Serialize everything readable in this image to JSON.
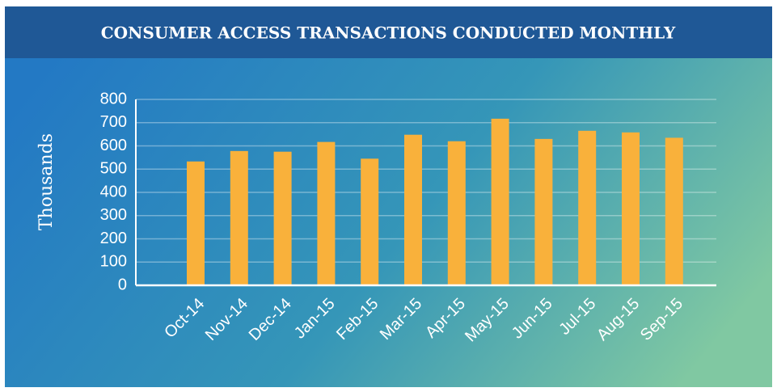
{
  "chart_data": {
    "type": "bar",
    "title": "CONSUMER ACCESS TRANSACTIONS CONDUCTED MONTHLY",
    "y_label": "Thousands",
    "categories": [
      "Oct-14",
      "Nov-14",
      "Dec-14",
      "Jan-15",
      "Feb-15",
      "Mar-15",
      "Apr-15",
      "May-15",
      "Jun-15",
      "Jul-15",
      "Aug-15",
      "Sep-15"
    ],
    "values": [
      533,
      578,
      575,
      617,
      545,
      648,
      620,
      717,
      630,
      665,
      658,
      635
    ],
    "color": "#f9b13b",
    "ylim": [
      0,
      800
    ],
    "yticks": [
      0,
      100,
      200,
      300,
      400,
      500,
      600,
      700,
      800
    ],
    "grid": true
  }
}
